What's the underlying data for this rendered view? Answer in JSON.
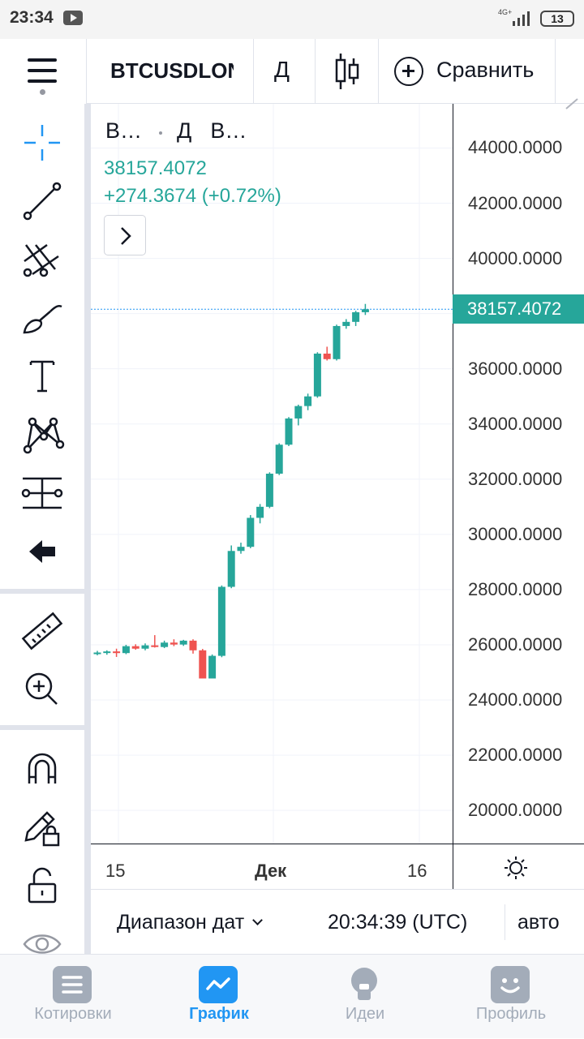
{
  "status_bar": {
    "time": "23:34",
    "network": "4G+",
    "battery": "13"
  },
  "toolbar": {
    "symbol": "BTCUSDLONG",
    "interval": "Д",
    "compare_label": "Сравнить"
  },
  "tools": [
    {
      "name": "crosshair-icon"
    },
    {
      "name": "trend-line-icon"
    },
    {
      "name": "pitchfork-icon"
    },
    {
      "name": "brush-icon"
    },
    {
      "name": "text-icon"
    },
    {
      "name": "pattern-icon"
    },
    {
      "name": "forecast-icon"
    },
    {
      "name": "back-arrow-icon"
    },
    {
      "name": "ruler-icon"
    },
    {
      "name": "zoom-in-icon"
    },
    {
      "name": "magnet-icon"
    },
    {
      "name": "lock-drawing-icon"
    },
    {
      "name": "unlock-icon"
    },
    {
      "name": "eye-icon"
    }
  ],
  "legend": {
    "title_a": "B…",
    "title_b": "Д",
    "title_c": "B…",
    "price": "38157.4072",
    "change": "+274.3674 (+0.72%)"
  },
  "current_price_label": "38157.4072",
  "colors": {
    "up": "#26a69a",
    "down": "#ef5350",
    "accent": "#2196f3",
    "muted": "#a3acb9"
  },
  "chart_data": {
    "type": "candlestick",
    "price_axis_labels": [
      "44000.0000",
      "42000.0000",
      "40000.0000",
      "36000.0000",
      "34000.0000",
      "32000.0000",
      "30000.0000",
      "28000.0000",
      "26000.0000",
      "24000.0000",
      "22000.0000",
      "20000.0000"
    ],
    "y_ticks": [
      44000,
      42000,
      40000,
      38000,
      36000,
      34000,
      32000,
      30000,
      28000,
      26000,
      24000,
      22000,
      20000
    ],
    "time_labels": [
      "15",
      "Дек",
      "16"
    ],
    "ylim": [
      18800,
      45600
    ],
    "current_price": 38157.4072,
    "candles": [
      {
        "o": 25700,
        "h": 25780,
        "l": 25620,
        "c": 25720
      },
      {
        "o": 25720,
        "h": 25800,
        "l": 25640,
        "c": 25760
      },
      {
        "o": 25760,
        "h": 25860,
        "l": 25560,
        "c": 25700
      },
      {
        "o": 25700,
        "h": 26000,
        "l": 25660,
        "c": 25950
      },
      {
        "o": 25950,
        "h": 26020,
        "l": 25820,
        "c": 25860
      },
      {
        "o": 25860,
        "h": 26050,
        "l": 25800,
        "c": 25980
      },
      {
        "o": 25980,
        "h": 26350,
        "l": 25900,
        "c": 25920
      },
      {
        "o": 25920,
        "h": 26150,
        "l": 25880,
        "c": 26080
      },
      {
        "o": 26080,
        "h": 26200,
        "l": 25950,
        "c": 26010
      },
      {
        "o": 26010,
        "h": 26180,
        "l": 25960,
        "c": 26150
      },
      {
        "o": 26150,
        "h": 26200,
        "l": 25680,
        "c": 25800
      },
      {
        "o": 25800,
        "h": 25850,
        "l": 24780,
        "c": 24780
      },
      {
        "o": 24780,
        "h": 25650,
        "l": 24780,
        "c": 25600
      },
      {
        "o": 25600,
        "h": 28150,
        "l": 25550,
        "c": 28100
      },
      {
        "o": 28100,
        "h": 29600,
        "l": 28050,
        "c": 29400
      },
      {
        "o": 29400,
        "h": 29700,
        "l": 29300,
        "c": 29550
      },
      {
        "o": 29550,
        "h": 30700,
        "l": 29500,
        "c": 30600
      },
      {
        "o": 30600,
        "h": 31100,
        "l": 30400,
        "c": 31000
      },
      {
        "o": 31000,
        "h": 32250,
        "l": 30950,
        "c": 32200
      },
      {
        "o": 32200,
        "h": 33300,
        "l": 32150,
        "c": 33250
      },
      {
        "o": 33250,
        "h": 34250,
        "l": 33200,
        "c": 34200
      },
      {
        "o": 34200,
        "h": 34700,
        "l": 33950,
        "c": 34650
      },
      {
        "o": 34650,
        "h": 35100,
        "l": 34500,
        "c": 35000
      },
      {
        "o": 35000,
        "h": 36600,
        "l": 34950,
        "c": 36550
      },
      {
        "o": 36550,
        "h": 36800,
        "l": 36300,
        "c": 36350
      },
      {
        "o": 36350,
        "h": 37600,
        "l": 36300,
        "c": 37550
      },
      {
        "o": 37550,
        "h": 37800,
        "l": 37450,
        "c": 37700
      },
      {
        "o": 37700,
        "h": 38100,
        "l": 37550,
        "c": 38050
      },
      {
        "o": 38050,
        "h": 38350,
        "l": 37950,
        "c": 38157
      }
    ]
  },
  "range_bar": {
    "range_label": "Диапазон дат",
    "clock": "20:34:39 (UTC)",
    "auto_label": "авто"
  },
  "bottom_nav": [
    {
      "label": "Котировки",
      "active": false
    },
    {
      "label": "График",
      "active": true
    },
    {
      "label": "Идеи",
      "active": false
    },
    {
      "label": "Профиль",
      "active": false
    }
  ]
}
